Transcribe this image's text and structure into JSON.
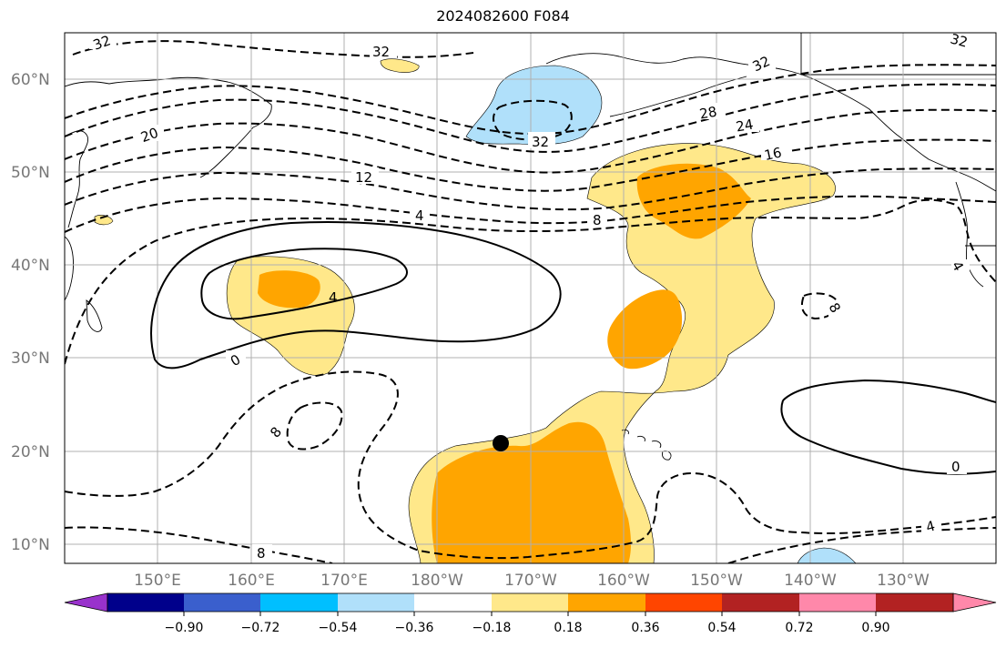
{
  "title": "2024082600 F084",
  "lat_labels": [
    "60°N",
    "50°N",
    "40°N",
    "30°N",
    "20°N",
    "10°N"
  ],
  "lon_labels": [
    "150°E",
    "160°E",
    "170°E",
    "180°W",
    "170°W",
    "160°W",
    "150°W",
    "140°W",
    "130°W"
  ],
  "colorbar": {
    "tick_labels": [
      "−0.90",
      "−0.72",
      "−0.54",
      "−0.36",
      "−0.18",
      "0.18",
      "0.36",
      "0.54",
      "0.72",
      "0.90"
    ],
    "colors": [
      "#9932cc",
      "#00008b",
      "#3a5fcd",
      "#00bfff",
      "#b0e0fa",
      "#ffffff",
      "#ffe88a",
      "#ffa500",
      "#ff4500",
      "#b22222",
      "#ff88aa"
    ]
  },
  "contour_labels": [
    "32",
    "32",
    "32",
    "32",
    "20",
    "28",
    "24",
    "16",
    "12",
    "4",
    "8",
    "4",
    "0",
    "8",
    "8",
    "0",
    "4",
    "8",
    "4",
    "32"
  ],
  "marker": "filled-black-circle"
}
